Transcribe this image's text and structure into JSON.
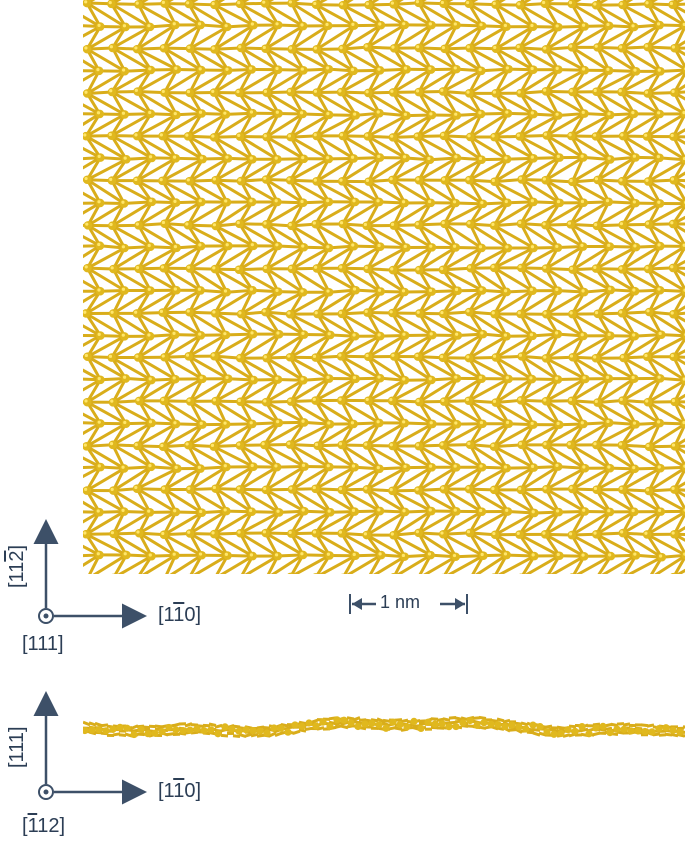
{
  "figure": {
    "top_view": {
      "vertical_axis": [
        "[11",
        "2",
        "]"
      ],
      "horizontal_axis": [
        "[1",
        "1",
        "0]"
      ],
      "out_of_plane": "[111]",
      "scale_bar": "1 nm"
    },
    "side_view": {
      "vertical_axis": "[111]",
      "horizontal_axis": [
        "[1",
        "1",
        "0]"
      ],
      "out_of_plane": [
        "[",
        "1",
        "12]"
      ]
    }
  },
  "colors": {
    "atom": "#e0b81e",
    "atom_highlight": "#ffe66a",
    "bond": "#d9ad1a",
    "axis": "#3d5068"
  }
}
